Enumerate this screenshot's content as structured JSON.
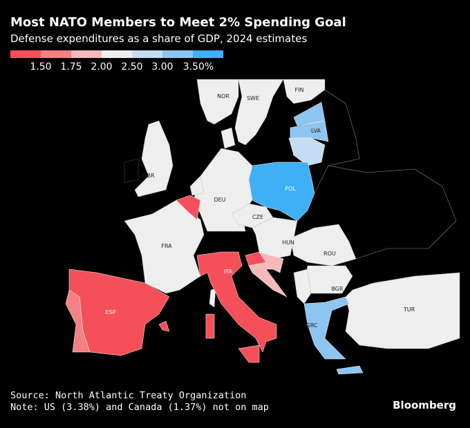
{
  "title": "Most NATO Members to Meet 2% Spending Goal",
  "subtitle": "Defense expenditures as a share of GDP, 2024 estimates",
  "legend": {
    "colors": [
      "#f5505a",
      "#f38183",
      "#f6b9b9",
      "#eeeeee",
      "#c4dcf3",
      "#8ec4f0",
      "#3fb0f6"
    ],
    "labels": [
      "1.50",
      "1.75",
      "2.00",
      "2.50",
      "3.00",
      "3.50%"
    ]
  },
  "countries": {
    "NOR": {
      "label": "NOR",
      "color": "#eeeeee"
    },
    "SWE": {
      "label": "SWE",
      "color": "#eeeeee"
    },
    "FIN": {
      "label": "FIN",
      "color": "#eeeeee"
    },
    "LVA": {
      "label": "LVA",
      "color": "#8ec4f0"
    },
    "POL": {
      "label": "POL",
      "color": "#3fb0f6"
    },
    "GBR": {
      "label": "GBR",
      "color": "#eeeeee"
    },
    "DEU": {
      "label": "DEU",
      "color": "#eeeeee"
    },
    "CZE": {
      "label": "CZE",
      "color": "#eeeeee"
    },
    "FRA": {
      "label": "FRA",
      "color": "#eeeeee"
    },
    "HUN": {
      "label": "HUN",
      "color": "#eeeeee"
    },
    "ROU": {
      "label": "ROU",
      "color": "#eeeeee"
    },
    "ITA": {
      "label": "ITA",
      "color": "#f5505a"
    },
    "BGR": {
      "label": "BGR",
      "color": "#eeeeee"
    },
    "ESP": {
      "label": "ESP",
      "color": "#f5505a"
    },
    "GRC": {
      "label": "GRC",
      "color": "#8ec4f0"
    },
    "TUR": {
      "label": "TUR",
      "color": "#eeeeee"
    }
  },
  "footer": {
    "source": "Source: North Atlantic Treaty Organization",
    "note": "Note: US (3.38%) and Canada (1.37%) not on map",
    "brand": "Bloomberg"
  }
}
